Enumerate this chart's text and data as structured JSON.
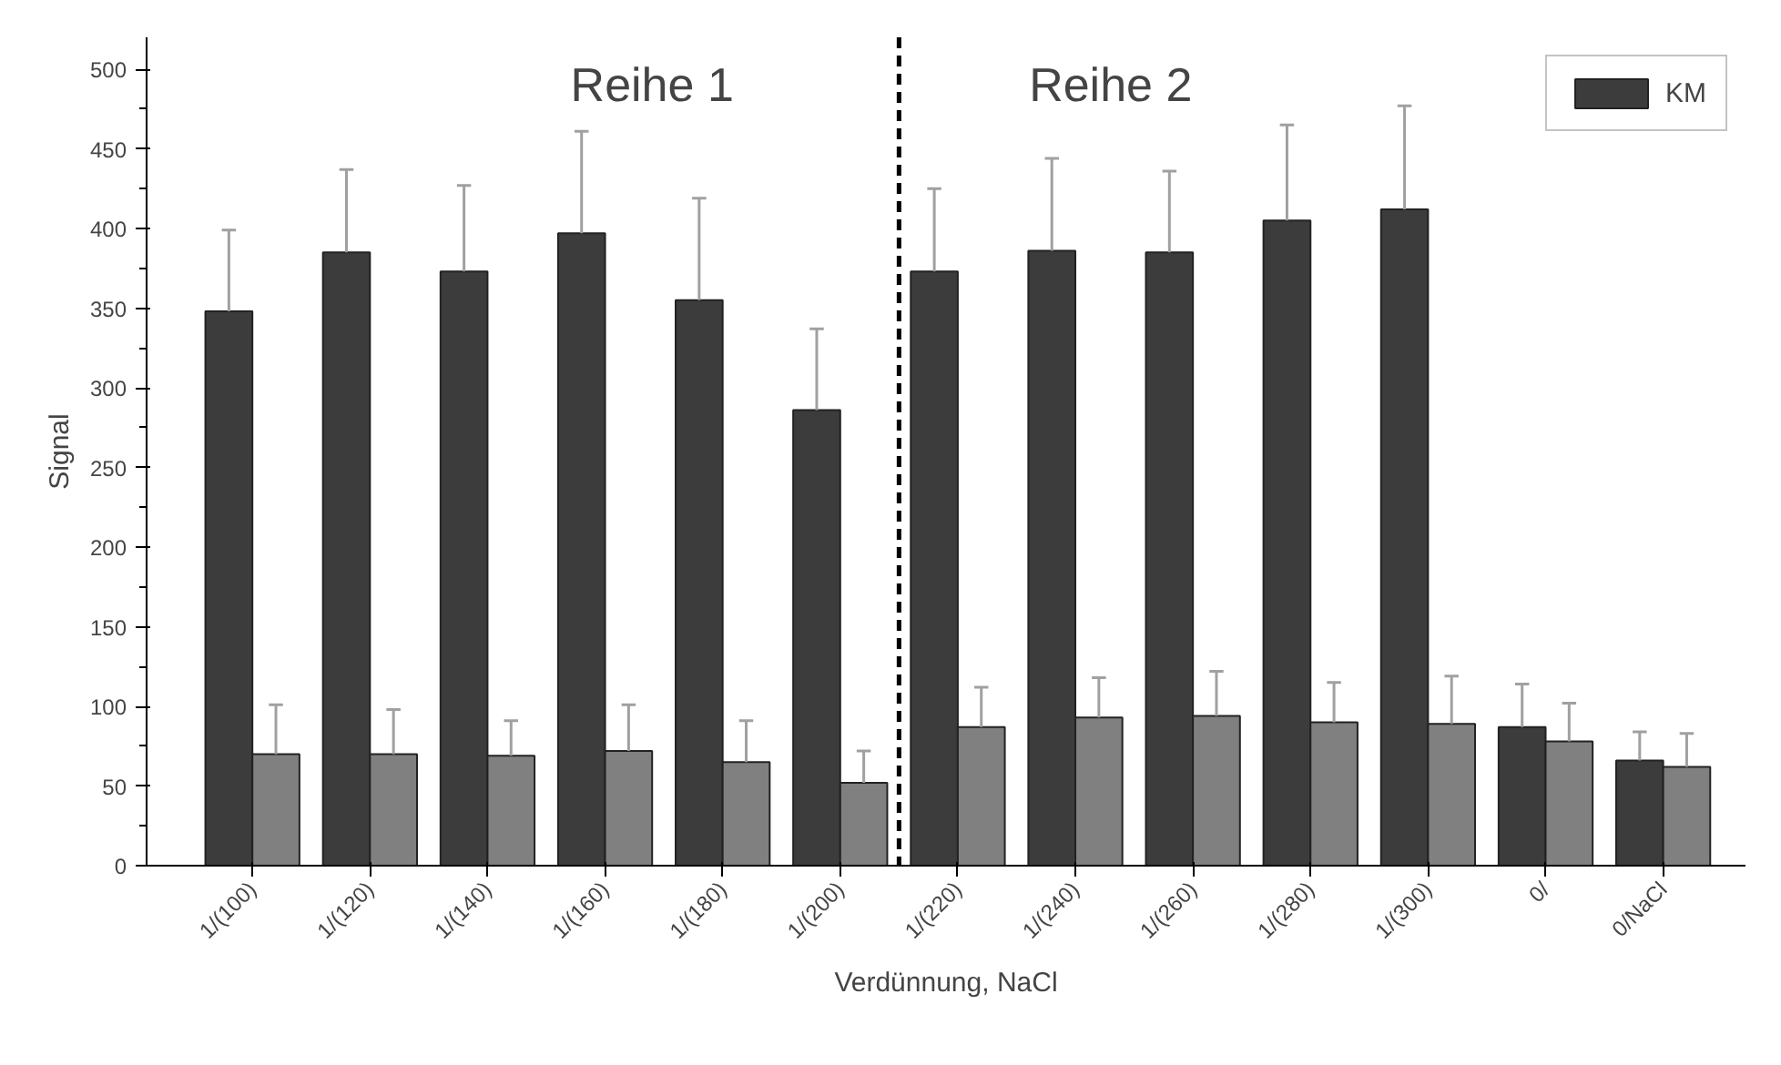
{
  "chart_data": {
    "type": "bar",
    "xlabel": "Verdünnung, NaCl",
    "ylabel": "Signal",
    "categories": [
      "1/(100)",
      "1/(120)",
      "1/(140)",
      "1/(160)",
      "1/(180)",
      "1/(200)",
      "1/(220)",
      "1/(240)",
      "1/(260)",
      "1/(280)",
      "1/(300)",
      "0/",
      "0/NaCl"
    ],
    "series": [
      {
        "name": "KM",
        "color": "#3c3c3c",
        "values": [
          348,
          385,
          373,
          397,
          355,
          286,
          373,
          386,
          385,
          405,
          412,
          87,
          66
        ],
        "errors": [
          [
            348,
            399
          ],
          [
            385,
            437
          ],
          [
            373,
            427
          ],
          [
            397,
            461
          ],
          [
            355,
            419
          ],
          [
            286,
            337
          ],
          [
            373,
            425
          ],
          [
            386,
            444
          ],
          [
            385,
            436
          ],
          [
            405,
            465
          ],
          [
            412,
            477
          ],
          [
            87,
            114
          ],
          [
            66,
            84
          ]
        ]
      },
      {
        "color": "#808080",
        "values": [
          70,
          70,
          69,
          72,
          65,
          52,
          87,
          93,
          94,
          90,
          89,
          78,
          62
        ],
        "errors": [
          [
            70,
            101
          ],
          [
            70,
            98
          ],
          [
            69,
            91
          ],
          [
            72,
            101
          ],
          [
            65,
            91
          ],
          [
            52,
            72
          ],
          [
            87,
            112
          ],
          [
            93,
            118
          ],
          [
            94,
            122
          ],
          [
            90,
            115
          ],
          [
            89,
            119
          ],
          [
            78,
            102
          ],
          [
            62,
            83
          ]
        ]
      }
    ],
    "ylim": [
      0,
      520
    ],
    "yticks": [
      0,
      50,
      100,
      150,
      200,
      250,
      300,
      350,
      400,
      450,
      500
    ],
    "annotations": [
      "Reihe 1",
      "Reihe 2"
    ],
    "grid": false,
    "legend": "top right"
  }
}
